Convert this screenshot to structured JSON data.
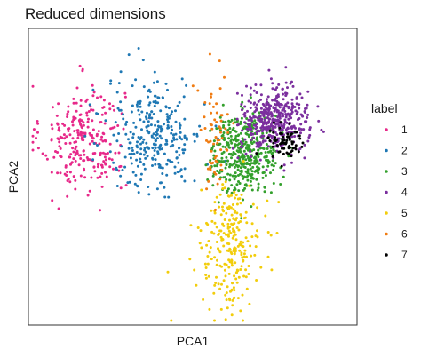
{
  "chart_data": {
    "type": "scatter",
    "title": "Reduced dimensions",
    "xlabel": "PCA1",
    "ylabel": "PCA2",
    "xlim": [
      -4,
      4
    ],
    "ylim": [
      -4,
      4
    ],
    "grid": false,
    "axis_ticks": false,
    "legend": {
      "title": "label",
      "placement": "right"
    },
    "series": [
      {
        "name": "1",
        "color": "#e7298a",
        "cluster": {
          "center": [
            -2.75,
            1.05
          ],
          "spread": [
            0.52,
            0.75
          ],
          "n": 260
        }
      },
      {
        "name": "2",
        "color": "#1f78b4",
        "cluster": {
          "center": [
            -0.95,
            1.15
          ],
          "spread": [
            0.6,
            0.8
          ],
          "n": 300
        }
      },
      {
        "name": "3",
        "color": "#33a02c",
        "cluster": {
          "center": [
            1.3,
            0.65
          ],
          "spread": [
            0.42,
            0.55
          ],
          "n": 420
        }
      },
      {
        "name": "4",
        "color": "#7b2f9e",
        "cluster": {
          "center": [
            2.05,
            1.55
          ],
          "spread": [
            0.42,
            0.45
          ],
          "n": 420
        }
      },
      {
        "name": "5",
        "color": "#f2cd0c",
        "cluster": {
          "center": [
            0.95,
            -1.9
          ],
          "spread": [
            0.38,
            0.85
          ],
          "n": 250
        }
      },
      {
        "name": "6",
        "color": "#f07c12",
        "cluster": {
          "center": [
            0.55,
            1.1
          ],
          "spread": [
            0.2,
            0.9
          ],
          "n": 65
        }
      },
      {
        "name": "7",
        "color": "#000000",
        "cluster": {
          "center": [
            2.3,
            0.95
          ],
          "spread": [
            0.22,
            0.3
          ],
          "n": 70
        }
      }
    ]
  }
}
